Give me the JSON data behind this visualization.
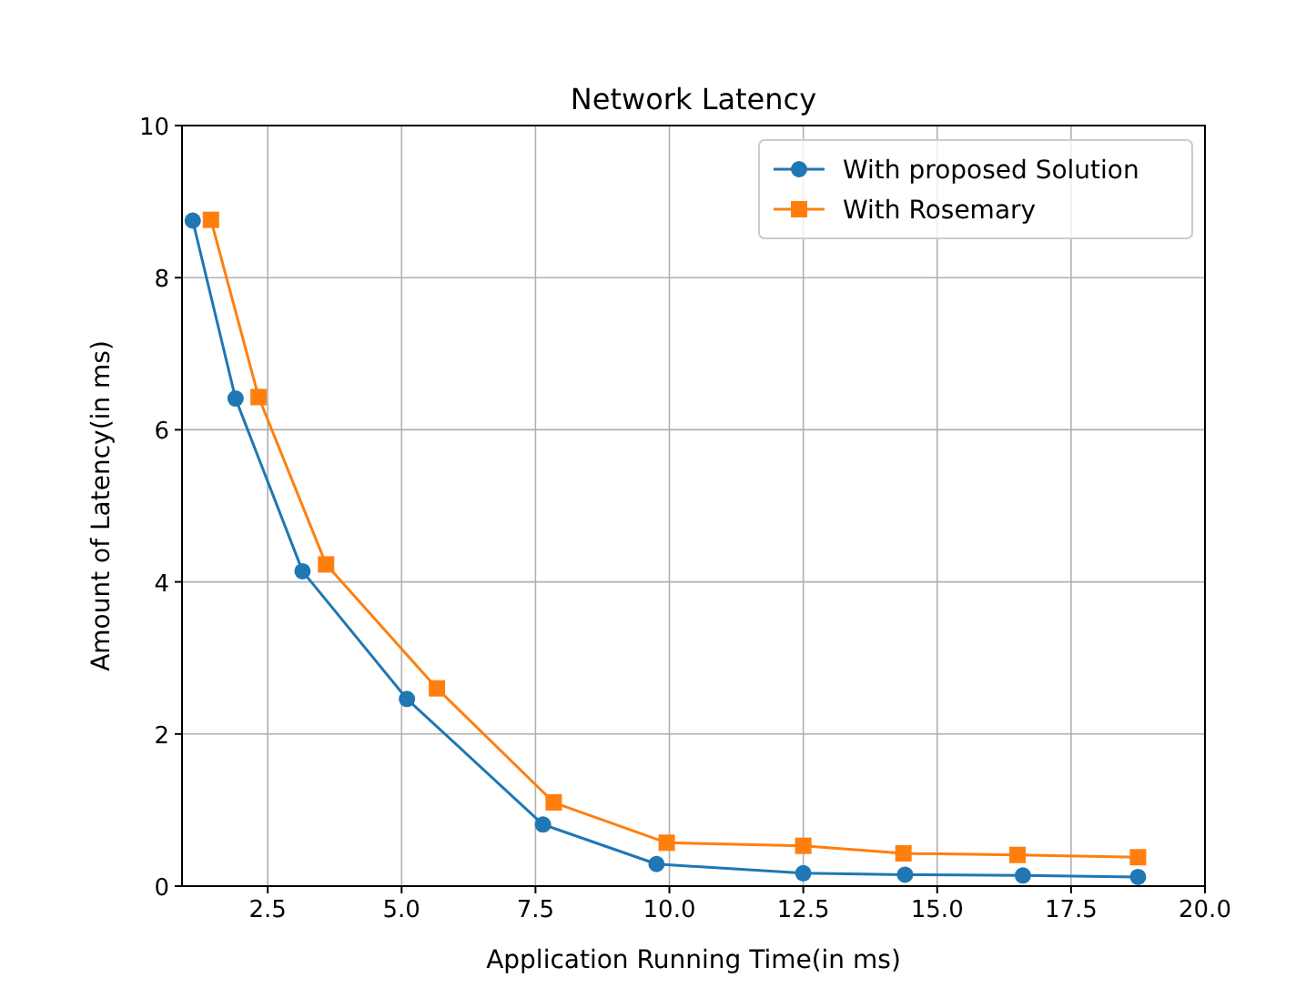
{
  "chart_data": {
    "type": "line",
    "title": "Network Latency",
    "xlabel": "Application Running Time(in ms)",
    "ylabel": "Amount of Latency(in ms)",
    "xlim": [
      0.9,
      20
    ],
    "xticks": [
      {
        "value": 2.5,
        "label": "2.5"
      },
      {
        "value": 5,
        "label": "5.0"
      },
      {
        "value": 7.5,
        "label": "7.5"
      },
      {
        "value": 10,
        "label": "10.0"
      },
      {
        "value": 12.5,
        "label": "12.5"
      },
      {
        "value": 15,
        "label": "15.0"
      },
      {
        "value": 17.5,
        "label": "17.5"
      },
      {
        "value": 20,
        "label": "20.0"
      }
    ],
    "ylim": [
      0,
      10
    ],
    "yticks": [
      0,
      2,
      4,
      6,
      8,
      10
    ],
    "grid": true,
    "legend": "top right",
    "series": [
      {
        "name": "With proposed Solution",
        "color": "#1f77b4",
        "marker": "circle",
        "x": [
          1.1,
          1.9,
          3.15,
          5.1,
          7.64,
          9.76,
          12.5,
          14.4,
          16.6,
          18.75
        ],
        "values": [
          8.75,
          6.41,
          4.14,
          2.46,
          0.81,
          0.29,
          0.17,
          0.15,
          0.14,
          0.12
        ]
      },
      {
        "name": "With Rosemary",
        "color": "#ff7f0e",
        "marker": "square",
        "x": [
          1.44,
          2.33,
          3.59,
          5.66,
          7.84,
          9.95,
          12.5,
          14.37,
          16.5,
          18.75
        ],
        "values": [
          8.76,
          6.43,
          4.23,
          2.6,
          1.1,
          0.57,
          0.53,
          0.43,
          0.41,
          0.38
        ]
      }
    ]
  }
}
